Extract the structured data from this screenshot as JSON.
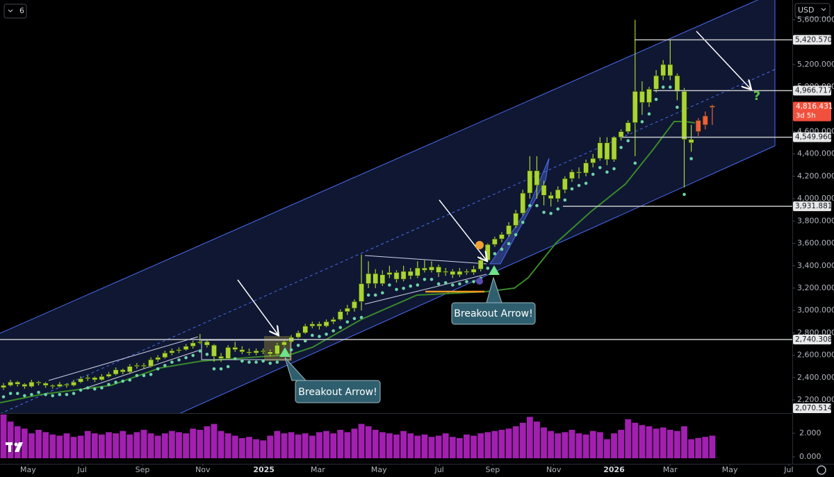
{
  "chart_data": {
    "type": "candlestick",
    "currency": "USD",
    "indicator_count": "6",
    "xlim": [
      -0.5,
      112.4
    ],
    "xticks": [
      {
        "value": 3.5,
        "label": "May"
      },
      {
        "value": 11.2,
        "label": "Jul"
      },
      {
        "value": 19.8,
        "label": "Sep"
      },
      {
        "value": 28.4,
        "label": "Nov"
      },
      {
        "value": 37.1,
        "label": "2025"
      },
      {
        "value": 44.8,
        "label": "Mar"
      },
      {
        "value": 53.5,
        "label": "May"
      },
      {
        "value": 62.1,
        "label": "Jul"
      },
      {
        "value": 69.7,
        "label": "Sep"
      },
      {
        "value": 78.4,
        "label": "Nov"
      },
      {
        "value": 87.0,
        "label": "2026"
      },
      {
        "value": 95.0,
        "label": "Mar"
      },
      {
        "value": 103.5,
        "label": "May"
      },
      {
        "value": 111.9,
        "label": "Jul"
      }
    ],
    "ylim": [
      2082,
      5777
    ],
    "yticks": [
      {
        "value": 5600,
        "label": "5,600.000"
      },
      {
        "value": 5200,
        "label": "5,200.000"
      },
      {
        "value": 5000,
        "label": "5,000.000"
      },
      {
        "value": 4600,
        "label": "4,600.000"
      },
      {
        "value": 4400,
        "label": "4,400.000"
      },
      {
        "value": 4200,
        "label": "4,200.000"
      },
      {
        "value": 4000,
        "label": "4,000.000"
      },
      {
        "value": 3800,
        "label": "3,800.000"
      },
      {
        "value": 3600,
        "label": "3,600.000"
      },
      {
        "value": 3400,
        "label": "3,400.000"
      },
      {
        "value": 3200,
        "label": "3,200.000"
      },
      {
        "value": 3000,
        "label": "3,000.000"
      },
      {
        "value": 2800,
        "label": "2,800.000"
      },
      {
        "value": 2600,
        "label": "2,600.000"
      },
      {
        "value": 2400,
        "label": "2,400.000"
      },
      {
        "value": 2200,
        "label": "2,200.000"
      }
    ],
    "series": [
      {
        "color": "#a9d433",
        "ohlc": [
          [
            2310,
            2350,
            2290,
            2330
          ],
          [
            2330,
            2380,
            2320,
            2360
          ],
          [
            2360,
            2370,
            2320,
            2340
          ],
          [
            2340,
            2350,
            2300,
            2320
          ],
          [
            2320,
            2380,
            2310,
            2360
          ],
          [
            2360,
            2370,
            2330,
            2350
          ],
          [
            2350,
            2360,
            2310,
            2330
          ],
          [
            2330,
            2340,
            2300,
            2320
          ],
          [
            2320,
            2360,
            2310,
            2340
          ],
          [
            2340,
            2350,
            2310,
            2330
          ],
          [
            2330,
            2380,
            2320,
            2360
          ],
          [
            2360,
            2410,
            2350,
            2390
          ],
          [
            2390,
            2420,
            2370,
            2400
          ],
          [
            2400,
            2410,
            2360,
            2380
          ],
          [
            2380,
            2430,
            2370,
            2410
          ],
          [
            2410,
            2450,
            2400,
            2430
          ],
          [
            2430,
            2490,
            2420,
            2470
          ],
          [
            2470,
            2480,
            2430,
            2450
          ],
          [
            2450,
            2520,
            2440,
            2500
          ],
          [
            2500,
            2530,
            2480,
            2510
          ],
          [
            2510,
            2530,
            2480,
            2500
          ],
          [
            2500,
            2580,
            2490,
            2560
          ],
          [
            2560,
            2600,
            2540,
            2580
          ],
          [
            2580,
            2640,
            2570,
            2620
          ],
          [
            2620,
            2660,
            2600,
            2640
          ],
          [
            2640,
            2670,
            2620,
            2650
          ],
          [
            2650,
            2700,
            2640,
            2680
          ],
          [
            2680,
            2730,
            2660,
            2710
          ],
          [
            2710,
            2790,
            2700,
            2720
          ],
          [
            2720,
            2740,
            2670,
            2690
          ],
          [
            2690,
            2700,
            2540,
            2590
          ],
          [
            2590,
            2620,
            2540,
            2570
          ],
          [
            2570,
            2690,
            2560,
            2670
          ],
          [
            2670,
            2720,
            2630,
            2650
          ],
          [
            2650,
            2680,
            2610,
            2630
          ],
          [
            2630,
            2660,
            2600,
            2620
          ],
          [
            2620,
            2660,
            2600,
            2640
          ],
          [
            2640,
            2660,
            2610,
            2630
          ],
          [
            2630,
            2650,
            2590,
            2610
          ],
          [
            2610,
            2710,
            2600,
            2690
          ],
          [
            2690,
            2740,
            2680,
            2720
          ],
          [
            2720,
            2780,
            2710,
            2760
          ],
          [
            2760,
            2820,
            2750,
            2800
          ],
          [
            2800,
            2880,
            2790,
            2860
          ],
          [
            2860,
            2900,
            2840,
            2880
          ],
          [
            2880,
            2900,
            2830,
            2860
          ],
          [
            2860,
            2920,
            2850,
            2900
          ],
          [
            2900,
            2940,
            2880,
            2920
          ],
          [
            2920,
            3010,
            2910,
            2990
          ],
          [
            2990,
            3050,
            2960,
            3020
          ],
          [
            3020,
            3100,
            2990,
            3080
          ],
          [
            3080,
            3500,
            3000,
            3240
          ],
          [
            3240,
            3440,
            3200,
            3330
          ],
          [
            3330,
            3370,
            3200,
            3240
          ],
          [
            3240,
            3360,
            3220,
            3320
          ],
          [
            3320,
            3400,
            3290,
            3340
          ],
          [
            3340,
            3360,
            3250,
            3280
          ],
          [
            3280,
            3400,
            3260,
            3350
          ],
          [
            3350,
            3380,
            3280,
            3310
          ],
          [
            3310,
            3440,
            3290,
            3380
          ],
          [
            3380,
            3450,
            3340,
            3360
          ],
          [
            3360,
            3440,
            3340,
            3390
          ],
          [
            3390,
            3410,
            3300,
            3340
          ],
          [
            3340,
            3380,
            3310,
            3350
          ],
          [
            3350,
            3370,
            3290,
            3320
          ],
          [
            3320,
            3380,
            3300,
            3350
          ],
          [
            3350,
            3370,
            3320,
            3340
          ],
          [
            3340,
            3400,
            3320,
            3370
          ],
          [
            3370,
            3480,
            3350,
            3450
          ],
          [
            3450,
            3600,
            3440,
            3590
          ],
          [
            3590,
            3660,
            3570,
            3640
          ],
          [
            3640,
            3700,
            3610,
            3680
          ],
          [
            3680,
            3790,
            3660,
            3760
          ],
          [
            3760,
            3900,
            3740,
            3870
          ],
          [
            3870,
            4080,
            3850,
            4050
          ],
          [
            4050,
            4380,
            4000,
            4250
          ],
          [
            4250,
            4380,
            4000,
            4120
          ],
          [
            4120,
            4160,
            3940,
            4030
          ],
          [
            4030,
            4060,
            3930,
            4000
          ],
          [
            4000,
            4110,
            3970,
            4080
          ],
          [
            4080,
            4200,
            4050,
            4180
          ],
          [
            4180,
            4260,
            4150,
            4240
          ],
          [
            4240,
            4280,
            4180,
            4230
          ],
          [
            4230,
            4350,
            4200,
            4320
          ],
          [
            4320,
            4400,
            4280,
            4360
          ],
          [
            4360,
            4550,
            4340,
            4500
          ],
          [
            4500,
            4550,
            4300,
            4350
          ],
          [
            4350,
            4560,
            4330,
            4550
          ],
          [
            4550,
            4620,
            4520,
            4600
          ],
          [
            4600,
            4700,
            4580,
            4680
          ],
          [
            4680,
            5600,
            4380,
            4960
          ],
          [
            4960,
            5050,
            4750,
            4860
          ],
          [
            4860,
            5000,
            4820,
            4980
          ],
          [
            4980,
            5150,
            4950,
            5100
          ],
          [
            5100,
            5240,
            5060,
            5200
          ],
          [
            5200,
            5420,
            5060,
            5100
          ],
          [
            5100,
            5120,
            4880,
            4960
          ],
          [
            4960,
            4990,
            4100,
            4530
          ],
          [
            4530,
            4660,
            4420,
            4500
          ]
        ]
      },
      {
        "color": "#f0603c",
        "x": [
          99,
          100,
          101
        ],
        "ohlc": [
          [
            4700,
            4720,
            4560,
            4600
          ],
          [
            4740,
            4780,
            4620,
            4660
          ],
          [
            4830,
            4840,
            4660,
            4816.431
          ]
        ]
      }
    ],
    "levels": [
      {
        "value": 5420.57,
        "label": "5,420.570"
      },
      {
        "value": 4966.717,
        "label": "4,966.717"
      },
      {
        "value": 4549.96,
        "label": "4,549.960"
      },
      {
        "value": 3931.881,
        "label": "3,931.881"
      },
      {
        "value": 2740.308,
        "label": "2,740.308"
      },
      {
        "value": 2070.514,
        "label": "2,070.514"
      }
    ],
    "last_price": {
      "value": 4816.431,
      "label": "4,816.431",
      "countdown": "3d 5h",
      "color": "#f0503c"
    },
    "annotations": [
      "Breakout Arrow!",
      "Breakout Arrow!",
      "?"
    ],
    "volume": {
      "color": "#a21fb0",
      "ylim": [
        0,
        3.6
      ],
      "yticks": [
        {
          "value": 2,
          "label": "2.000"
        },
        {
          "value": 0,
          "label": "0.000"
        }
      ],
      "values": [
        3.6,
        3.0,
        2.6,
        2.4,
        2.0,
        2.3,
        2.1,
        1.9,
        1.8,
        2.0,
        1.7,
        1.8,
        2.2,
        2.0,
        1.9,
        2.1,
        2.0,
        2.2,
        1.9,
        2.1,
        2.3,
        2.0,
        1.8,
        2.0,
        2.2,
        2.1,
        2.0,
        2.4,
        2.3,
        2.6,
        2.8,
        2.2,
        2.0,
        1.8,
        1.6,
        1.7,
        1.5,
        1.4,
        1.8,
        2.2,
        2.0,
        2.1,
        1.9,
        2.0,
        1.8,
        2.1,
        2.2,
        2.0,
        2.3,
        2.1,
        2.4,
        2.8,
        2.6,
        2.3,
        2.1,
        2.0,
        1.9,
        2.2,
        2.0,
        1.8,
        1.9,
        1.7,
        1.8,
        2.0,
        1.7,
        1.6,
        1.9,
        1.8,
        2.0,
        2.1,
        2.2,
        2.3,
        2.4,
        2.6,
        2.9,
        3.4,
        3.0,
        2.5,
        2.2,
        2.0,
        2.1,
        2.3,
        2.0,
        1.9,
        2.2,
        2.1,
        1.5,
        2.0,
        2.3,
        3.2,
        2.9,
        2.7,
        2.6,
        2.4,
        2.5,
        2.3,
        2.2,
        2.6,
        1.5,
        1.6,
        1.7,
        1.8
      ]
    }
  }
}
